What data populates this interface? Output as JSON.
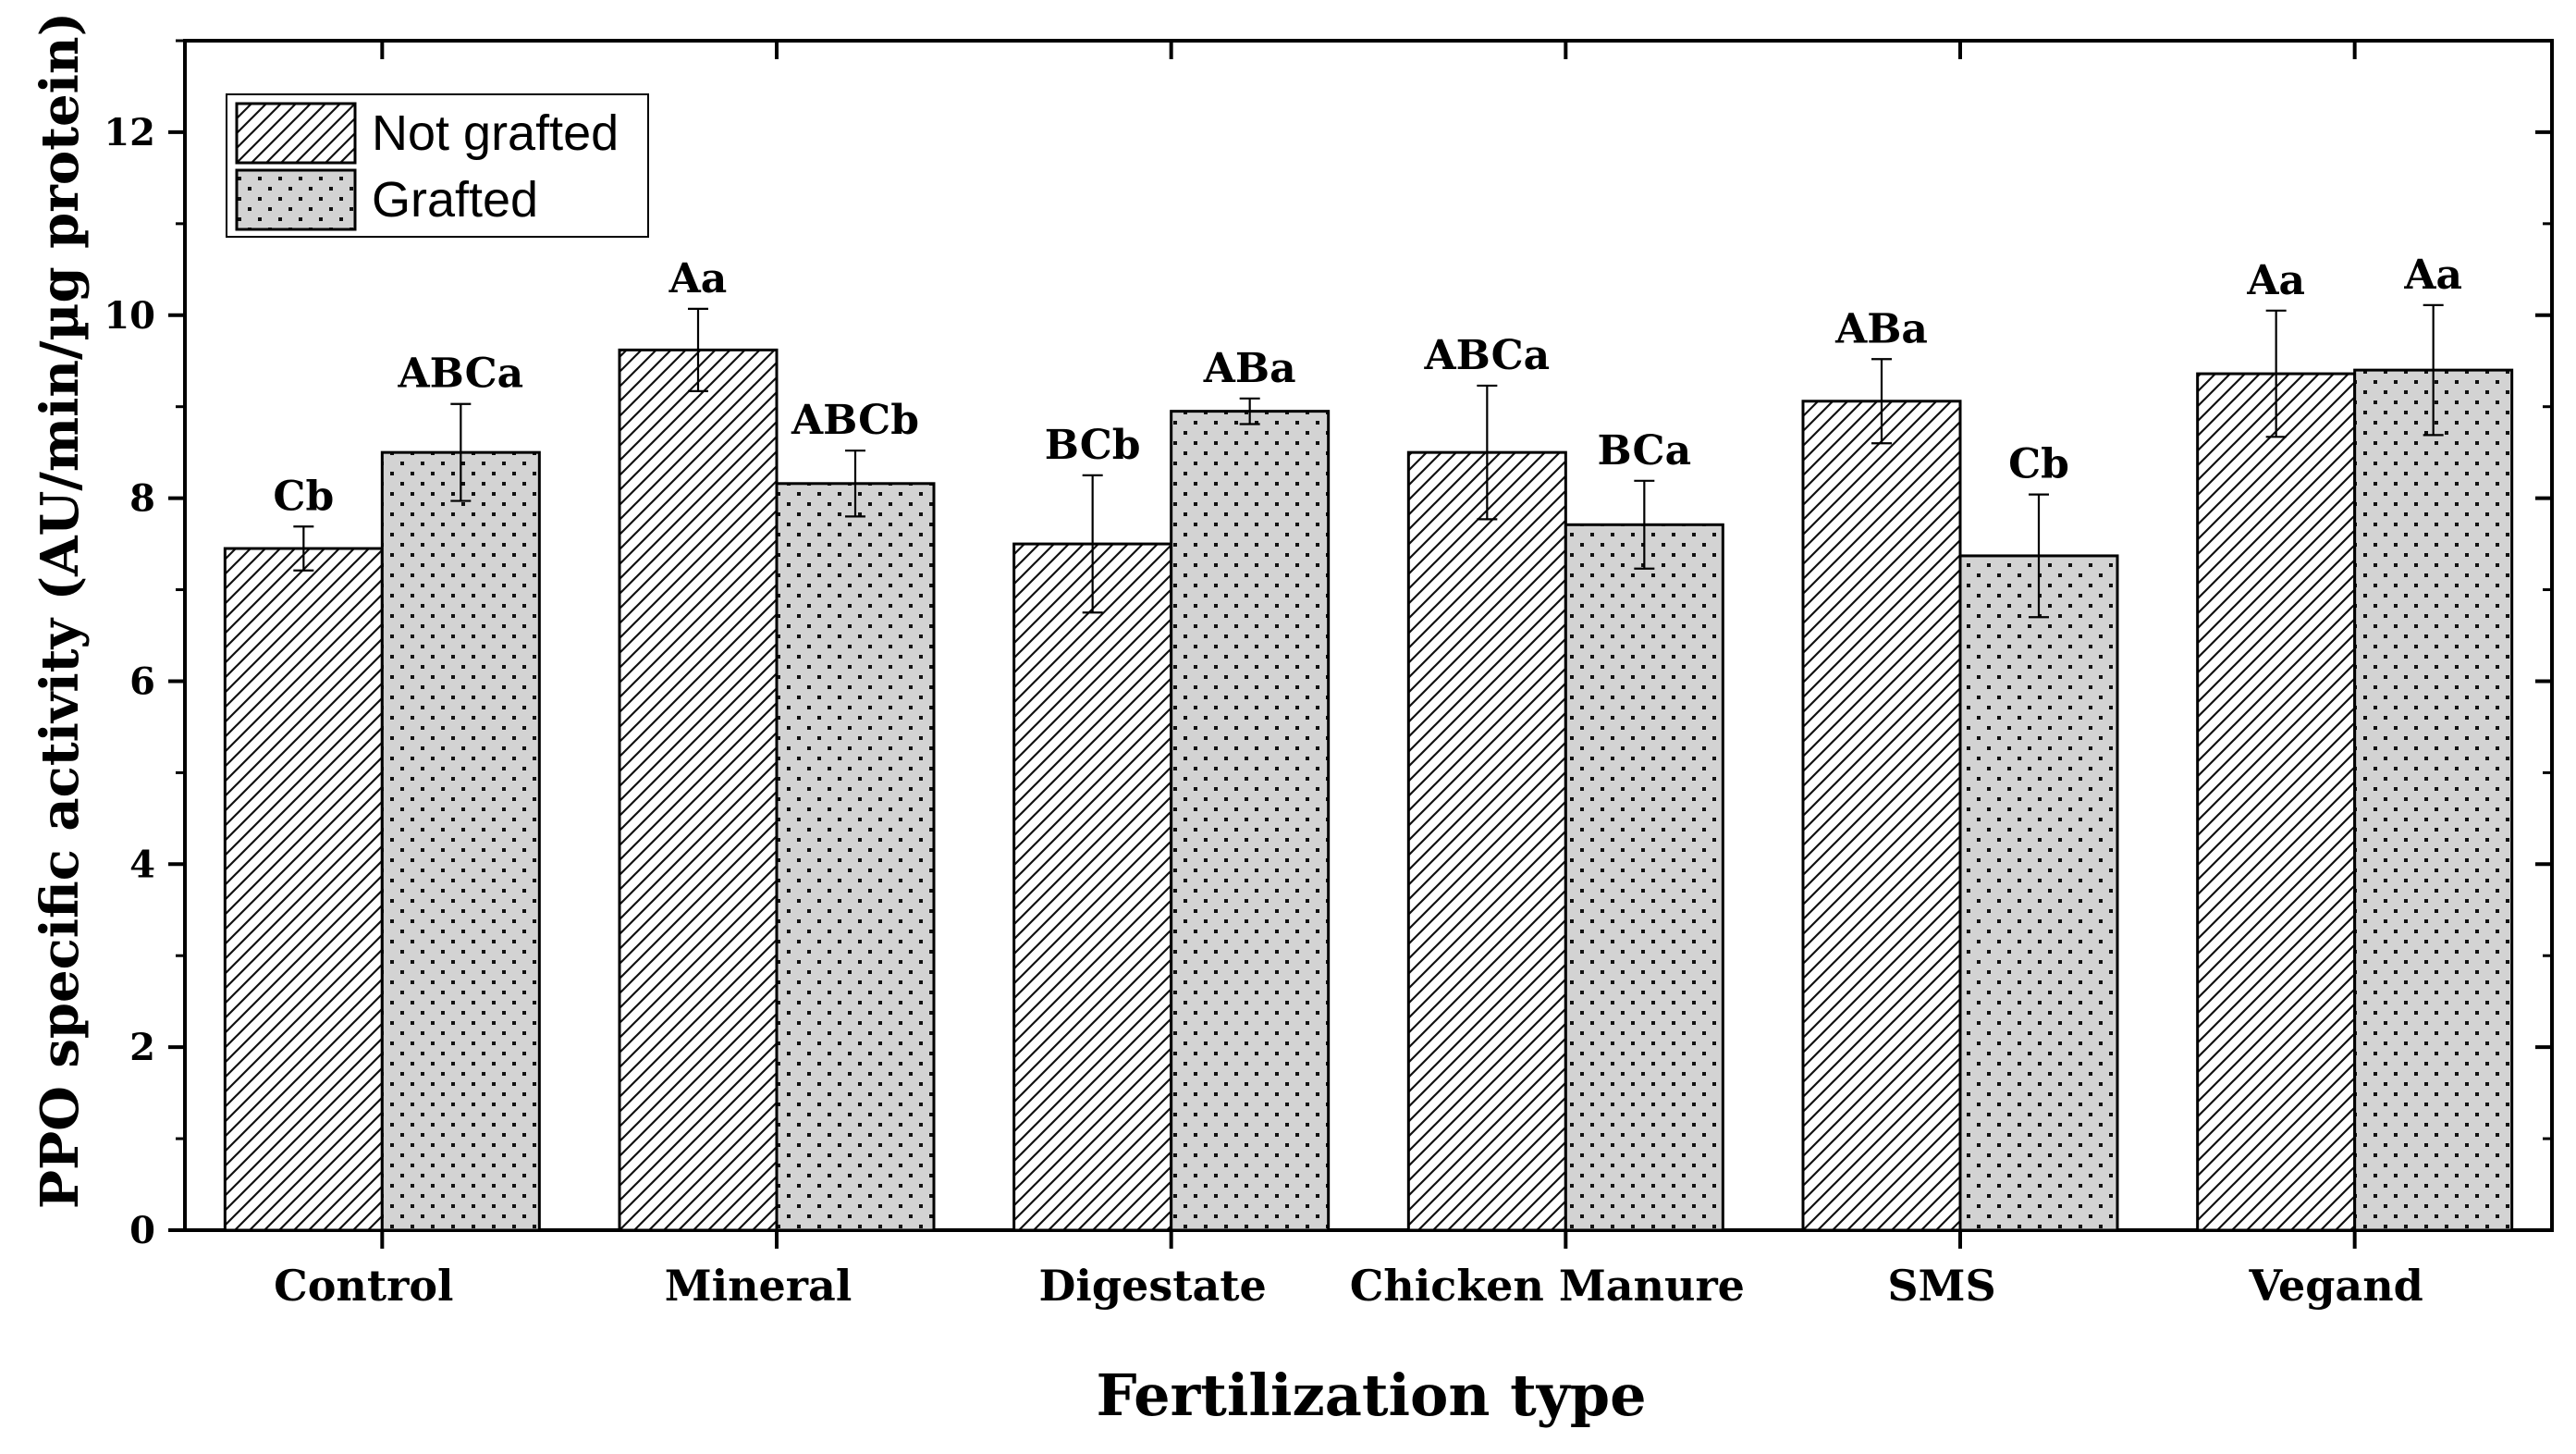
{
  "chart_data": {
    "type": "bar",
    "xlabel": "Fertilization type",
    "ylabel": "PPO specific activity (AU/min/µg protein)",
    "ylim": [
      0,
      13
    ],
    "yticks": [
      0,
      2,
      4,
      6,
      8,
      10,
      12
    ],
    "grid": false,
    "legend_position": "top-left",
    "categories": [
      "Control",
      "Mineral",
      "Digestate",
      "Chicken Manure",
      "SMS",
      "Vegand"
    ],
    "series": [
      {
        "name": "Not grafted",
        "pattern": "diagonal-hatch",
        "fill": "#ffffff",
        "values": [
          7.45,
          9.62,
          7.5,
          8.5,
          9.06,
          9.36
        ],
        "errors": [
          0.24,
          0.45,
          0.75,
          0.73,
          0.46,
          0.69
        ],
        "labels": [
          "Cb",
          "Aa",
          "BCb",
          "ABCa",
          "ABa",
          "Aa"
        ]
      },
      {
        "name": "Grafted",
        "pattern": "dots",
        "fill": "#d3d3d3",
        "values": [
          8.5,
          8.16,
          8.95,
          7.71,
          7.37,
          9.4
        ],
        "errors": [
          0.53,
          0.36,
          0.14,
          0.48,
          0.67,
          0.71
        ],
        "labels": [
          "ABCa",
          "ABCb",
          "ABa",
          "BCa",
          "Cb",
          "Aa"
        ]
      }
    ]
  }
}
